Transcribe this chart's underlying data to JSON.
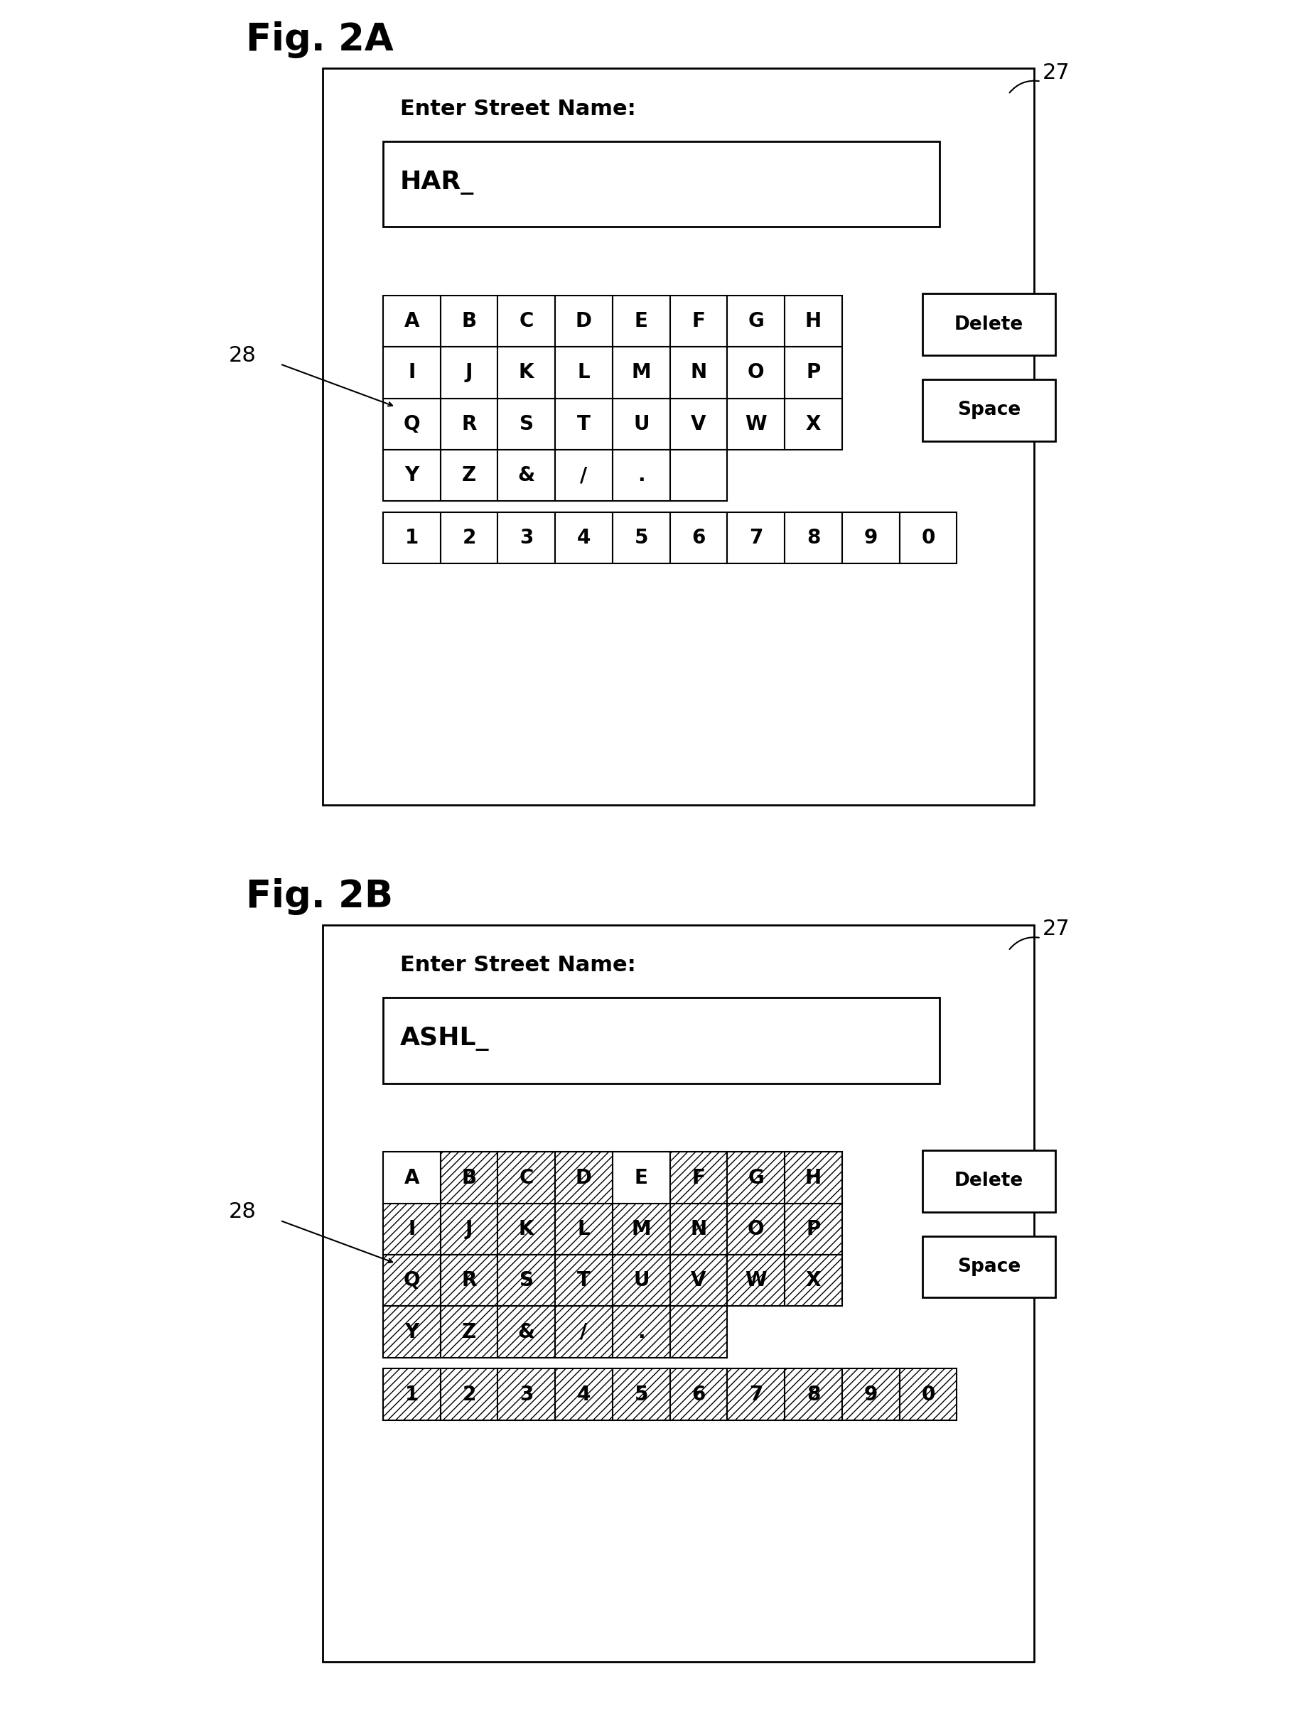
{
  "fig_labels": [
    "Fig. 2A",
    "Fig. 2B"
  ],
  "input_texts": [
    "HAR_",
    "ASHL_"
  ],
  "label_27": "27",
  "label_28": "28",
  "prompt_text": "Enter Street Name:",
  "keyboard_rows": [
    [
      "A",
      "B",
      "C",
      "D",
      "E",
      "F",
      "G",
      "H"
    ],
    [
      "I",
      "J",
      "K",
      "L",
      "M",
      "N",
      "O",
      "P"
    ],
    [
      "Q",
      "R",
      "S",
      "T",
      "U",
      "V",
      "W",
      "X"
    ],
    [
      "Y",
      "Z",
      "&",
      "/",
      ".",
      " ",
      "'",
      " "
    ],
    [
      "1",
      "2",
      "3",
      "4",
      "5",
      "6",
      "7",
      "8",
      "9",
      "0"
    ]
  ],
  "row_counts": [
    8,
    8,
    8,
    6,
    10
  ],
  "hatched_2B_row0": [
    1,
    2,
    3,
    5,
    6,
    7
  ],
  "hatched_2B_row1": [
    0,
    1,
    2,
    3,
    4,
    5,
    6,
    7
  ],
  "hatched_2B_row2": [
    0,
    1,
    2,
    3,
    4,
    5,
    6,
    7
  ],
  "hatched_2B_row3": [
    0,
    1,
    2,
    3,
    4,
    5
  ],
  "hatched_2B_row4": [
    0,
    1,
    2,
    3,
    4,
    5,
    6,
    7,
    8,
    9
  ],
  "bg_color": "#ffffff",
  "hatch_pattern": "///",
  "delete_label": "Delete",
  "space_label": "Space"
}
